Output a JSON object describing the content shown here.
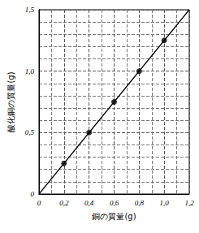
{
  "chart_data": {
    "type": "scatter",
    "x_label": "銅の質量(g)",
    "y_label": "酸化銅の質量(g)",
    "xlim": [
      0,
      1.2
    ],
    "xticks": [
      0,
      {
        "value": 0.2,
        "label": "0,2"
      },
      {
        "value": 0.4,
        "label": "0,4"
      },
      {
        "value": 0.6,
        "label": "0,6"
      },
      {
        "value": 0.8,
        "label": "0,8"
      },
      {
        "value": 1.0,
        "label": "1,0"
      },
      {
        "value": 1.2,
        "label": "1,2"
      }
    ],
    "ylim": [
      0,
      1.5
    ],
    "yticks": [
      0,
      {
        "value": 0.5,
        "label": "0,5"
      },
      {
        "value": 1.0,
        "label": "1,0"
      },
      {
        "value": 1.5,
        "label": "1,5"
      }
    ],
    "grid": true,
    "series": [
      {
        "type": "scatter",
        "marker": "circle",
        "color": "#000000",
        "x": [
          0.2,
          0.4,
          0.6,
          0.8,
          1.0
        ],
        "values": [
          0.25,
          0.5,
          0.75,
          1.0,
          1.25
        ]
      },
      {
        "type": "line",
        "line_style": "solid",
        "color": "#000000",
        "x": [
          0,
          1.2
        ],
        "values": [
          0,
          1.5
        ]
      }
    ]
  }
}
